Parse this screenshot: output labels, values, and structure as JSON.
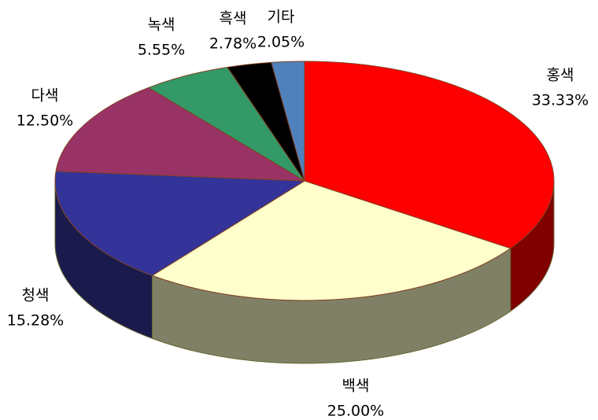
{
  "chart_data": {
    "type": "pie",
    "categories": [
      "홍색",
      "백색",
      "청색",
      "다색",
      "녹색",
      "흑색",
      "기타"
    ],
    "values": [
      33.33,
      25.0,
      15.28,
      12.5,
      5.55,
      2.78,
      2.05
    ],
    "value_labels": [
      "33.33%",
      "25.00%",
      "15.28%",
      "12.50%",
      "5.55%",
      "2.78%",
      "2.05%"
    ],
    "colors": [
      "#ff0000",
      "#ffffcc",
      "#333399",
      "#993366",
      "#339966",
      "#000000",
      "#4f81bd"
    ]
  }
}
